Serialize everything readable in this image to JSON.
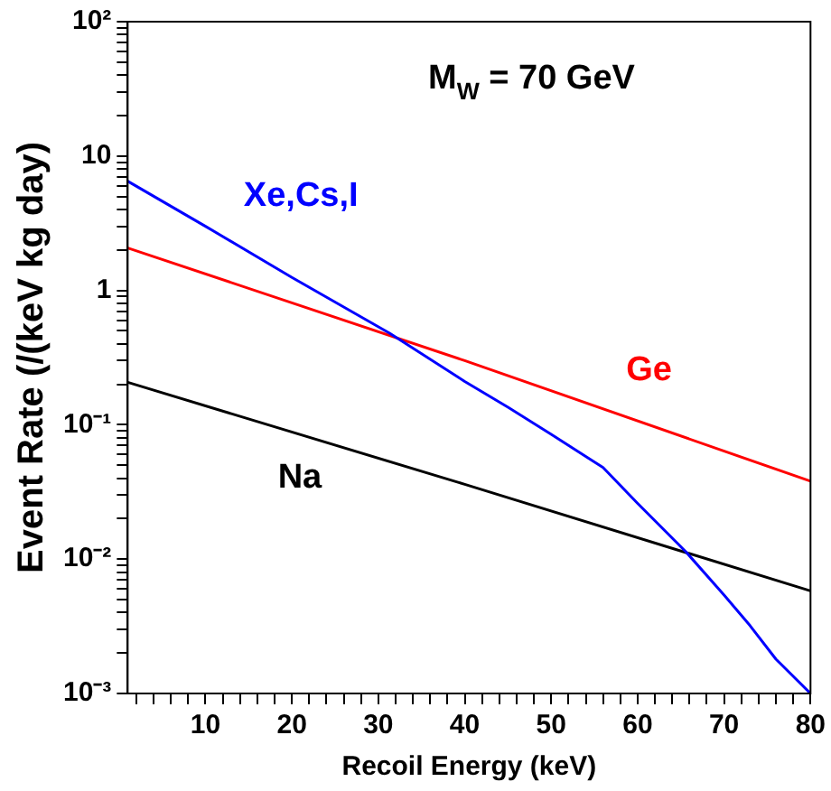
{
  "chart_data": {
    "type": "line",
    "xlabel": "Recoil Energy (keV)",
    "ylabel": "Event Rate (/(keV kg day)",
    "log": "y",
    "grid": false,
    "legend": false,
    "marker": "none",
    "line_style": "solid",
    "annotations": [
      "M$_{W}$ = 70 GeV"
    ],
    "xlim": [
      1,
      80
    ],
    "ylim": [
      0.001,
      100
    ],
    "xticks": [
      {
        "value": 2,
        "label": null
      },
      {
        "value": 4,
        "label": null
      },
      {
        "value": 6,
        "label": null
      },
      {
        "value": 8,
        "label": null
      },
      10,
      {
        "value": 12,
        "label": null
      },
      {
        "value": 14,
        "label": null
      },
      {
        "value": 16,
        "label": null
      },
      {
        "value": 18,
        "label": null
      },
      20,
      {
        "value": 22,
        "label": null
      },
      {
        "value": 24,
        "label": null
      },
      {
        "value": 26,
        "label": null
      },
      {
        "value": 28,
        "label": null
      },
      30,
      {
        "value": 32,
        "label": null
      },
      {
        "value": 34,
        "label": null
      },
      {
        "value": 36,
        "label": null
      },
      {
        "value": 38,
        "label": null
      },
      40,
      {
        "value": 42,
        "label": null
      },
      {
        "value": 44,
        "label": null
      },
      {
        "value": 46,
        "label": null
      },
      {
        "value": 48,
        "label": null
      },
      50,
      {
        "value": 52,
        "label": null
      },
      {
        "value": 54,
        "label": null
      },
      {
        "value": 56,
        "label": null
      },
      {
        "value": 58,
        "label": null
      },
      60,
      {
        "value": 62,
        "label": null
      },
      {
        "value": 64,
        "label": null
      },
      {
        "value": 66,
        "label": null
      },
      {
        "value": 68,
        "label": null
      },
      70,
      {
        "value": 72,
        "label": null
      },
      {
        "value": 74,
        "label": null
      },
      {
        "value": 76,
        "label": null
      },
      {
        "value": 78,
        "label": null
      },
      80
    ],
    "yticks": [
      {
        "value": 0.001,
        "label": "10⁻³"
      },
      {
        "value": 0.002,
        "label": null
      },
      {
        "value": 0.003,
        "label": null
      },
      {
        "value": 0.004,
        "label": null
      },
      {
        "value": 0.005,
        "label": null
      },
      {
        "value": 0.006,
        "label": null
      },
      {
        "value": 0.007,
        "label": null
      },
      {
        "value": 0.008,
        "label": null
      },
      {
        "value": 0.009,
        "label": null
      },
      {
        "value": 0.01,
        "label": "10⁻²"
      },
      {
        "value": 0.02,
        "label": null
      },
      {
        "value": 0.03,
        "label": null
      },
      {
        "value": 0.04,
        "label": null
      },
      {
        "value": 0.05,
        "label": null
      },
      {
        "value": 0.06,
        "label": null
      },
      {
        "value": 0.07,
        "label": null
      },
      {
        "value": 0.08,
        "label": null
      },
      {
        "value": 0.09,
        "label": null
      },
      {
        "value": 0.1,
        "label": "10⁻¹"
      },
      {
        "value": 0.2,
        "label": null
      },
      {
        "value": 0.3,
        "label": null
      },
      {
        "value": 0.4,
        "label": null
      },
      {
        "value": 0.5,
        "label": null
      },
      {
        "value": 0.6,
        "label": null
      },
      {
        "value": 0.7,
        "label": null
      },
      {
        "value": 0.8,
        "label": null
      },
      {
        "value": 0.9,
        "label": null
      },
      1,
      {
        "value": 2,
        "label": null
      },
      {
        "value": 3,
        "label": null
      },
      {
        "value": 4,
        "label": null
      },
      {
        "value": 5,
        "label": null
      },
      {
        "value": 6,
        "label": null
      },
      {
        "value": 7,
        "label": null
      },
      {
        "value": 8,
        "label": null
      },
      {
        "value": 9,
        "label": null
      },
      10,
      {
        "value": 20,
        "label": null
      },
      {
        "value": 30,
        "label": null
      },
      {
        "value": 40,
        "label": null
      },
      {
        "value": 50,
        "label": null
      },
      {
        "value": 60,
        "label": null
      },
      {
        "value": 70,
        "label": null
      },
      {
        "value": 80,
        "label": null
      },
      {
        "value": 90,
        "label": null
      },
      {
        "value": 100,
        "label": "10²"
      }
    ],
    "series": [
      {
        "name": "Xe,Cs,I",
        "color": "#0000ff",
        "x": [
          1,
          10,
          20,
          31.3,
          40,
          45,
          50,
          56,
          60,
          65.6,
          70,
          73,
          76,
          80
        ],
        "values": [
          6.5,
          3.0,
          1.25,
          0.48,
          0.21,
          0.135,
          0.085,
          0.048,
          0.026,
          0.0113,
          0.0054,
          0.0032,
          0.0018,
          0.001
        ]
      },
      {
        "name": "Ge",
        "color": "#ff0000",
        "x": [
          1,
          40,
          80
        ],
        "values": [
          2.07,
          0.3,
          0.038
        ]
      },
      {
        "name": "Na",
        "color": "#000000",
        "x": [
          1,
          40,
          80
        ],
        "values": [
          0.207,
          0.036,
          0.0058
        ]
      }
    ]
  }
}
